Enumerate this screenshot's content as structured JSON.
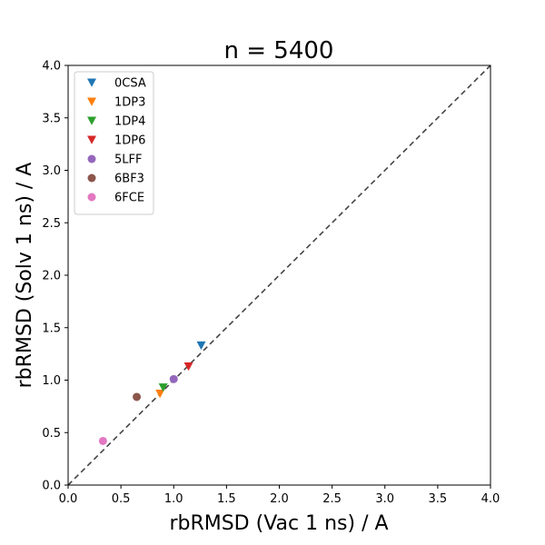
{
  "chart_data": {
    "type": "scatter",
    "title": "n = 5400",
    "xlabel": "rbRMSD (Vac 1 ns) / A",
    "ylabel": "rbRMSD (Solv 1 ns) / A",
    "xlim": [
      0.0,
      4.0
    ],
    "ylim": [
      0.0,
      4.0
    ],
    "xticks": [
      "0.0",
      "0.5",
      "1.0",
      "1.5",
      "2.0",
      "2.5",
      "3.0",
      "3.5",
      "4.0"
    ],
    "yticks": [
      "0.0",
      "0.5",
      "1.0",
      "1.5",
      "2.0",
      "2.5",
      "3.0",
      "3.5",
      "4.0"
    ],
    "grid": false,
    "legend_position": "top-left",
    "reference_line": {
      "style": "dashed",
      "color": "#444444",
      "from": [
        0,
        0
      ],
      "to": [
        4,
        4
      ]
    },
    "series": [
      {
        "name": "0CSA",
        "marker": "triangle-down",
        "color": "#1f77b4",
        "x": 1.26,
        "y": 1.33
      },
      {
        "name": "1DP3",
        "marker": "triangle-down",
        "color": "#ff7f0e",
        "x": 0.87,
        "y": 0.87
      },
      {
        "name": "1DP4",
        "marker": "triangle-down",
        "color": "#2ca02c",
        "x": 0.9,
        "y": 0.93
      },
      {
        "name": "1DP6",
        "marker": "triangle-down",
        "color": "#d62728",
        "x": 1.14,
        "y": 1.13
      },
      {
        "name": "5LFF",
        "marker": "circle",
        "color": "#9467bd",
        "x": 1.0,
        "y": 1.01
      },
      {
        "name": "6BF3",
        "marker": "circle",
        "color": "#8c564b",
        "x": 0.65,
        "y": 0.84
      },
      {
        "name": "6FCE",
        "marker": "circle",
        "color": "#e377c2",
        "x": 0.33,
        "y": 0.42
      }
    ]
  }
}
